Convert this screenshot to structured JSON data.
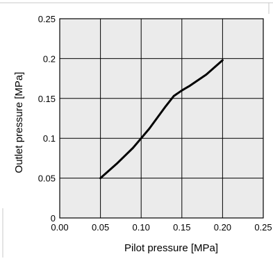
{
  "chart_data": {
    "type": "line",
    "xlabel": "Pilot pressure   [MPa]",
    "ylabel": "Outlet pressure   [MPa]",
    "xlim": [
      0.0,
      0.25
    ],
    "ylim": [
      0.0,
      0.25
    ],
    "x_ticks": [
      "0.00",
      "0.05",
      "0.10",
      "0.15",
      "0.20",
      "0.25"
    ],
    "y_ticks": [
      "0",
      "0.05",
      "0.1",
      "0.15",
      "0.2",
      "0.25"
    ],
    "grid": true,
    "colors": {
      "plot_background": "#ebebeb",
      "grid": "#000000",
      "line": "#000000",
      "page_rule": "#c8c8c8"
    },
    "series": [
      {
        "x": [
          0.05,
          0.07,
          0.09,
          0.1,
          0.11,
          0.12,
          0.13,
          0.14,
          0.15,
          0.16,
          0.18,
          0.2
        ],
        "y": [
          0.05,
          0.068,
          0.088,
          0.1,
          0.112,
          0.126,
          0.14,
          0.153,
          0.16,
          0.166,
          0.18,
          0.198
        ]
      }
    ]
  }
}
